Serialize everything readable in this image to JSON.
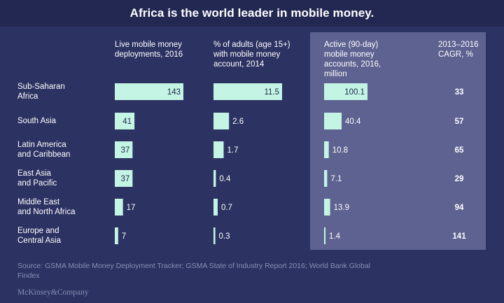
{
  "title": "Africa is the world leader in mobile money.",
  "colors": {
    "background": "#2c3262",
    "title_bar": "#232853",
    "highlight_panel": "#5d6290",
    "bar": "#c4f5e4",
    "text": "#ffffff",
    "muted": "#8a8fb5"
  },
  "chart_data": {
    "type": "bar",
    "orientation": "horizontal",
    "title": "Africa is the world leader in mobile money.",
    "categories": [
      "Sub-Saharan\nAfrica",
      "South Asia",
      "Latin America\nand Caribbean",
      "East Asia\nand Pacific",
      "Middle East\nand North Africa",
      "Europe and\nCentral Asia"
    ],
    "series": [
      {
        "name": "Live mobile money\ndeployments, 2016",
        "values": [
          143,
          41,
          37,
          37,
          17,
          7
        ],
        "labels": [
          "143",
          "41",
          "37",
          "37",
          "17",
          "7"
        ],
        "max": 143
      },
      {
        "name": "% of adults (age 15+)\nwith mobile money\naccount, 2014",
        "values": [
          11.5,
          2.6,
          1.7,
          0.4,
          0.7,
          0.3
        ],
        "labels": [
          "11.5",
          "2.6",
          "1.7",
          "0.4",
          "0.7",
          "0.3"
        ],
        "max": 11.5
      },
      {
        "name": "Active (90-day)\nmobile money\naccounts, 2016,\nmillion",
        "values": [
          100.1,
          40.4,
          10.8,
          7.1,
          13.9,
          1.4
        ],
        "labels": [
          "100.1",
          "40.4",
          "10.8",
          "7.1",
          "13.9",
          "1.4"
        ],
        "max": 100.1,
        "highlighted": true
      }
    ],
    "extra_column": {
      "name": "2013–2016\nCAGR, %",
      "values": [
        33,
        57,
        65,
        29,
        94,
        141
      ]
    }
  },
  "source": "Source: GSMA Mobile Money Deployment Tracker; GSMA State of Industry Report 2016; World Bank Global Findex",
  "brand": "McKinsey&Company"
}
